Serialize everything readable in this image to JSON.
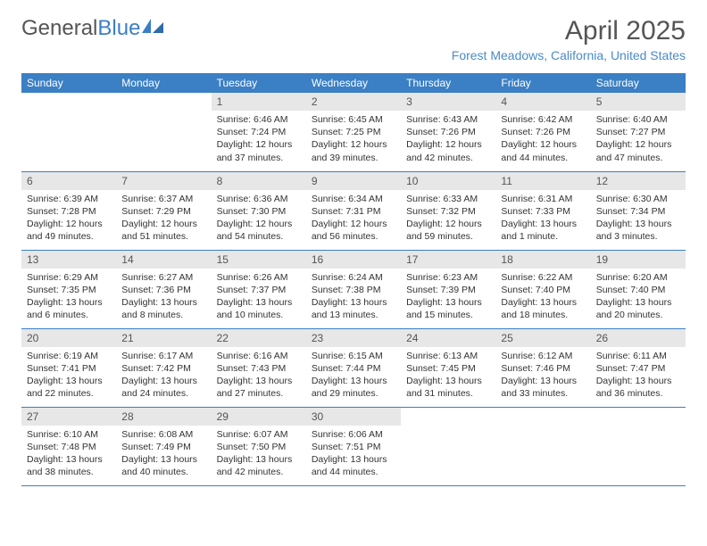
{
  "brand": {
    "part1": "General",
    "part2": "Blue"
  },
  "title": "April 2025",
  "subtitle": "Forest Meadows, California, United States",
  "colors": {
    "header_bg": "#3b7fc4",
    "header_text": "#ffffff",
    "daynum_bg": "#e7e7e7",
    "rule": "#3b7fc4",
    "title_text": "#555555",
    "subtitle_text": "#4a8ac9"
  },
  "weekdays": [
    "Sunday",
    "Monday",
    "Tuesday",
    "Wednesday",
    "Thursday",
    "Friday",
    "Saturday"
  ],
  "weeks": [
    [
      null,
      null,
      {
        "n": "1",
        "sr": "Sunrise: 6:46 AM",
        "ss": "Sunset: 7:24 PM",
        "dl1": "Daylight: 12 hours",
        "dl2": "and 37 minutes."
      },
      {
        "n": "2",
        "sr": "Sunrise: 6:45 AM",
        "ss": "Sunset: 7:25 PM",
        "dl1": "Daylight: 12 hours",
        "dl2": "and 39 minutes."
      },
      {
        "n": "3",
        "sr": "Sunrise: 6:43 AM",
        "ss": "Sunset: 7:26 PM",
        "dl1": "Daylight: 12 hours",
        "dl2": "and 42 minutes."
      },
      {
        "n": "4",
        "sr": "Sunrise: 6:42 AM",
        "ss": "Sunset: 7:26 PM",
        "dl1": "Daylight: 12 hours",
        "dl2": "and 44 minutes."
      },
      {
        "n": "5",
        "sr": "Sunrise: 6:40 AM",
        "ss": "Sunset: 7:27 PM",
        "dl1": "Daylight: 12 hours",
        "dl2": "and 47 minutes."
      }
    ],
    [
      {
        "n": "6",
        "sr": "Sunrise: 6:39 AM",
        "ss": "Sunset: 7:28 PM",
        "dl1": "Daylight: 12 hours",
        "dl2": "and 49 minutes."
      },
      {
        "n": "7",
        "sr": "Sunrise: 6:37 AM",
        "ss": "Sunset: 7:29 PM",
        "dl1": "Daylight: 12 hours",
        "dl2": "and 51 minutes."
      },
      {
        "n": "8",
        "sr": "Sunrise: 6:36 AM",
        "ss": "Sunset: 7:30 PM",
        "dl1": "Daylight: 12 hours",
        "dl2": "and 54 minutes."
      },
      {
        "n": "9",
        "sr": "Sunrise: 6:34 AM",
        "ss": "Sunset: 7:31 PM",
        "dl1": "Daylight: 12 hours",
        "dl2": "and 56 minutes."
      },
      {
        "n": "10",
        "sr": "Sunrise: 6:33 AM",
        "ss": "Sunset: 7:32 PM",
        "dl1": "Daylight: 12 hours",
        "dl2": "and 59 minutes."
      },
      {
        "n": "11",
        "sr": "Sunrise: 6:31 AM",
        "ss": "Sunset: 7:33 PM",
        "dl1": "Daylight: 13 hours",
        "dl2": "and 1 minute."
      },
      {
        "n": "12",
        "sr": "Sunrise: 6:30 AM",
        "ss": "Sunset: 7:34 PM",
        "dl1": "Daylight: 13 hours",
        "dl2": "and 3 minutes."
      }
    ],
    [
      {
        "n": "13",
        "sr": "Sunrise: 6:29 AM",
        "ss": "Sunset: 7:35 PM",
        "dl1": "Daylight: 13 hours",
        "dl2": "and 6 minutes."
      },
      {
        "n": "14",
        "sr": "Sunrise: 6:27 AM",
        "ss": "Sunset: 7:36 PM",
        "dl1": "Daylight: 13 hours",
        "dl2": "and 8 minutes."
      },
      {
        "n": "15",
        "sr": "Sunrise: 6:26 AM",
        "ss": "Sunset: 7:37 PM",
        "dl1": "Daylight: 13 hours",
        "dl2": "and 10 minutes."
      },
      {
        "n": "16",
        "sr": "Sunrise: 6:24 AM",
        "ss": "Sunset: 7:38 PM",
        "dl1": "Daylight: 13 hours",
        "dl2": "and 13 minutes."
      },
      {
        "n": "17",
        "sr": "Sunrise: 6:23 AM",
        "ss": "Sunset: 7:39 PM",
        "dl1": "Daylight: 13 hours",
        "dl2": "and 15 minutes."
      },
      {
        "n": "18",
        "sr": "Sunrise: 6:22 AM",
        "ss": "Sunset: 7:40 PM",
        "dl1": "Daylight: 13 hours",
        "dl2": "and 18 minutes."
      },
      {
        "n": "19",
        "sr": "Sunrise: 6:20 AM",
        "ss": "Sunset: 7:40 PM",
        "dl1": "Daylight: 13 hours",
        "dl2": "and 20 minutes."
      }
    ],
    [
      {
        "n": "20",
        "sr": "Sunrise: 6:19 AM",
        "ss": "Sunset: 7:41 PM",
        "dl1": "Daylight: 13 hours",
        "dl2": "and 22 minutes."
      },
      {
        "n": "21",
        "sr": "Sunrise: 6:17 AM",
        "ss": "Sunset: 7:42 PM",
        "dl1": "Daylight: 13 hours",
        "dl2": "and 24 minutes."
      },
      {
        "n": "22",
        "sr": "Sunrise: 6:16 AM",
        "ss": "Sunset: 7:43 PM",
        "dl1": "Daylight: 13 hours",
        "dl2": "and 27 minutes."
      },
      {
        "n": "23",
        "sr": "Sunrise: 6:15 AM",
        "ss": "Sunset: 7:44 PM",
        "dl1": "Daylight: 13 hours",
        "dl2": "and 29 minutes."
      },
      {
        "n": "24",
        "sr": "Sunrise: 6:13 AM",
        "ss": "Sunset: 7:45 PM",
        "dl1": "Daylight: 13 hours",
        "dl2": "and 31 minutes."
      },
      {
        "n": "25",
        "sr": "Sunrise: 6:12 AM",
        "ss": "Sunset: 7:46 PM",
        "dl1": "Daylight: 13 hours",
        "dl2": "and 33 minutes."
      },
      {
        "n": "26",
        "sr": "Sunrise: 6:11 AM",
        "ss": "Sunset: 7:47 PM",
        "dl1": "Daylight: 13 hours",
        "dl2": "and 36 minutes."
      }
    ],
    [
      {
        "n": "27",
        "sr": "Sunrise: 6:10 AM",
        "ss": "Sunset: 7:48 PM",
        "dl1": "Daylight: 13 hours",
        "dl2": "and 38 minutes."
      },
      {
        "n": "28",
        "sr": "Sunrise: 6:08 AM",
        "ss": "Sunset: 7:49 PM",
        "dl1": "Daylight: 13 hours",
        "dl2": "and 40 minutes."
      },
      {
        "n": "29",
        "sr": "Sunrise: 6:07 AM",
        "ss": "Sunset: 7:50 PM",
        "dl1": "Daylight: 13 hours",
        "dl2": "and 42 minutes."
      },
      {
        "n": "30",
        "sr": "Sunrise: 6:06 AM",
        "ss": "Sunset: 7:51 PM",
        "dl1": "Daylight: 13 hours",
        "dl2": "and 44 minutes."
      },
      null,
      null,
      null
    ]
  ]
}
